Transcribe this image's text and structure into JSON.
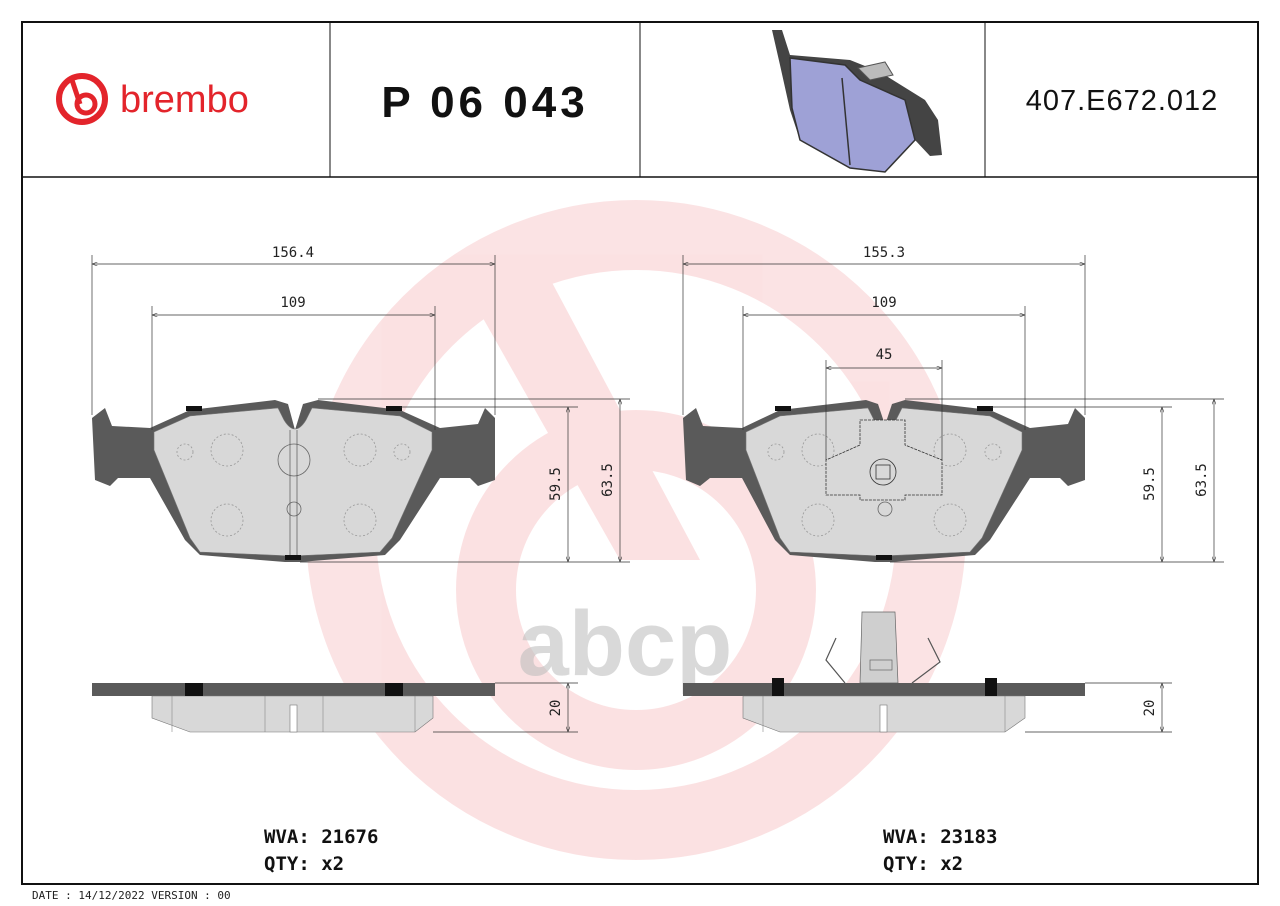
{
  "header": {
    "brand": "brembo",
    "part_number": "P 06 043",
    "reference_code": "407.E672.012"
  },
  "watermark": {
    "text": "abcp"
  },
  "left_pad": {
    "width_dim": "156.4",
    "inner_dim": "109",
    "height_dim_1": "59.5",
    "height_dim_2": "63.5",
    "thickness_dim": "20",
    "wva": "WVA: 21676",
    "qty": "QTY: x2"
  },
  "right_pad": {
    "width_dim": "155.3",
    "inner_dim": "109",
    "sensor_dim": "45",
    "height_dim_1": "59.5",
    "height_dim_2": "63.5",
    "thickness_dim": "20",
    "wva": "WVA: 23183",
    "qty": "QTY: x2"
  },
  "footer": {
    "date_version": "DATE : 14/12/2022 VERSION : 00"
  },
  "colors": {
    "brand_red": "#e3242b",
    "plate": "#5a5a5a",
    "friction": "#d8d8d8"
  }
}
